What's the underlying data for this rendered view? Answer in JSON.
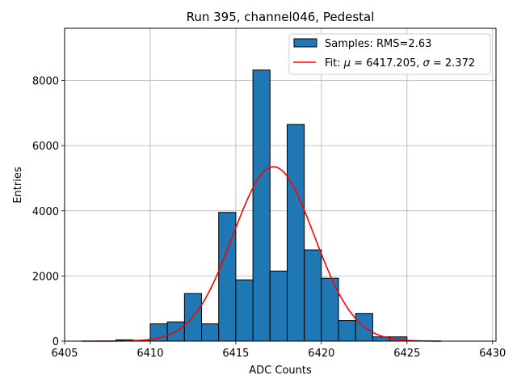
{
  "chart_data": {
    "type": "bar",
    "title": "Run 395, channel046, Pedestal",
    "xlabel": "ADC Counts",
    "ylabel": "Entries",
    "xlim": [
      6405,
      6430.2
    ],
    "ylim": [
      0,
      9600
    ],
    "grid": true,
    "legend_position": "top-right",
    "x_ticks": [
      6405,
      6410,
      6415,
      6420,
      6425,
      6430
    ],
    "y_ticks": [
      0,
      2000,
      4000,
      6000,
      8000
    ],
    "histogram": {
      "name": "Samples: RMS=2.63",
      "color": "#1f77b4",
      "edgecolor": "#000000",
      "bin_width": 1,
      "bin_starts": [
        6408,
        6409,
        6410,
        6411,
        6412,
        6413,
        6414,
        6415,
        6416,
        6417,
        6418,
        6419,
        6420,
        6421,
        6422,
        6423,
        6424
      ],
      "values": [
        40,
        15,
        530,
        590,
        1460,
        530,
        3950,
        1880,
        8320,
        2150,
        6650,
        2800,
        1930,
        630,
        850,
        130,
        130
      ]
    },
    "fit": {
      "label_prefix": "Fit: ",
      "label_mu": "μ",
      "label_mu_value": " = 6417.205, ",
      "label_sigma": "σ",
      "label_sigma_value": " = 2.372",
      "color": "#ff0000",
      "mu": 6417.205,
      "sigma": 2.372,
      "amplitude": 5350,
      "x_range": [
        6406,
        6427
      ]
    }
  }
}
